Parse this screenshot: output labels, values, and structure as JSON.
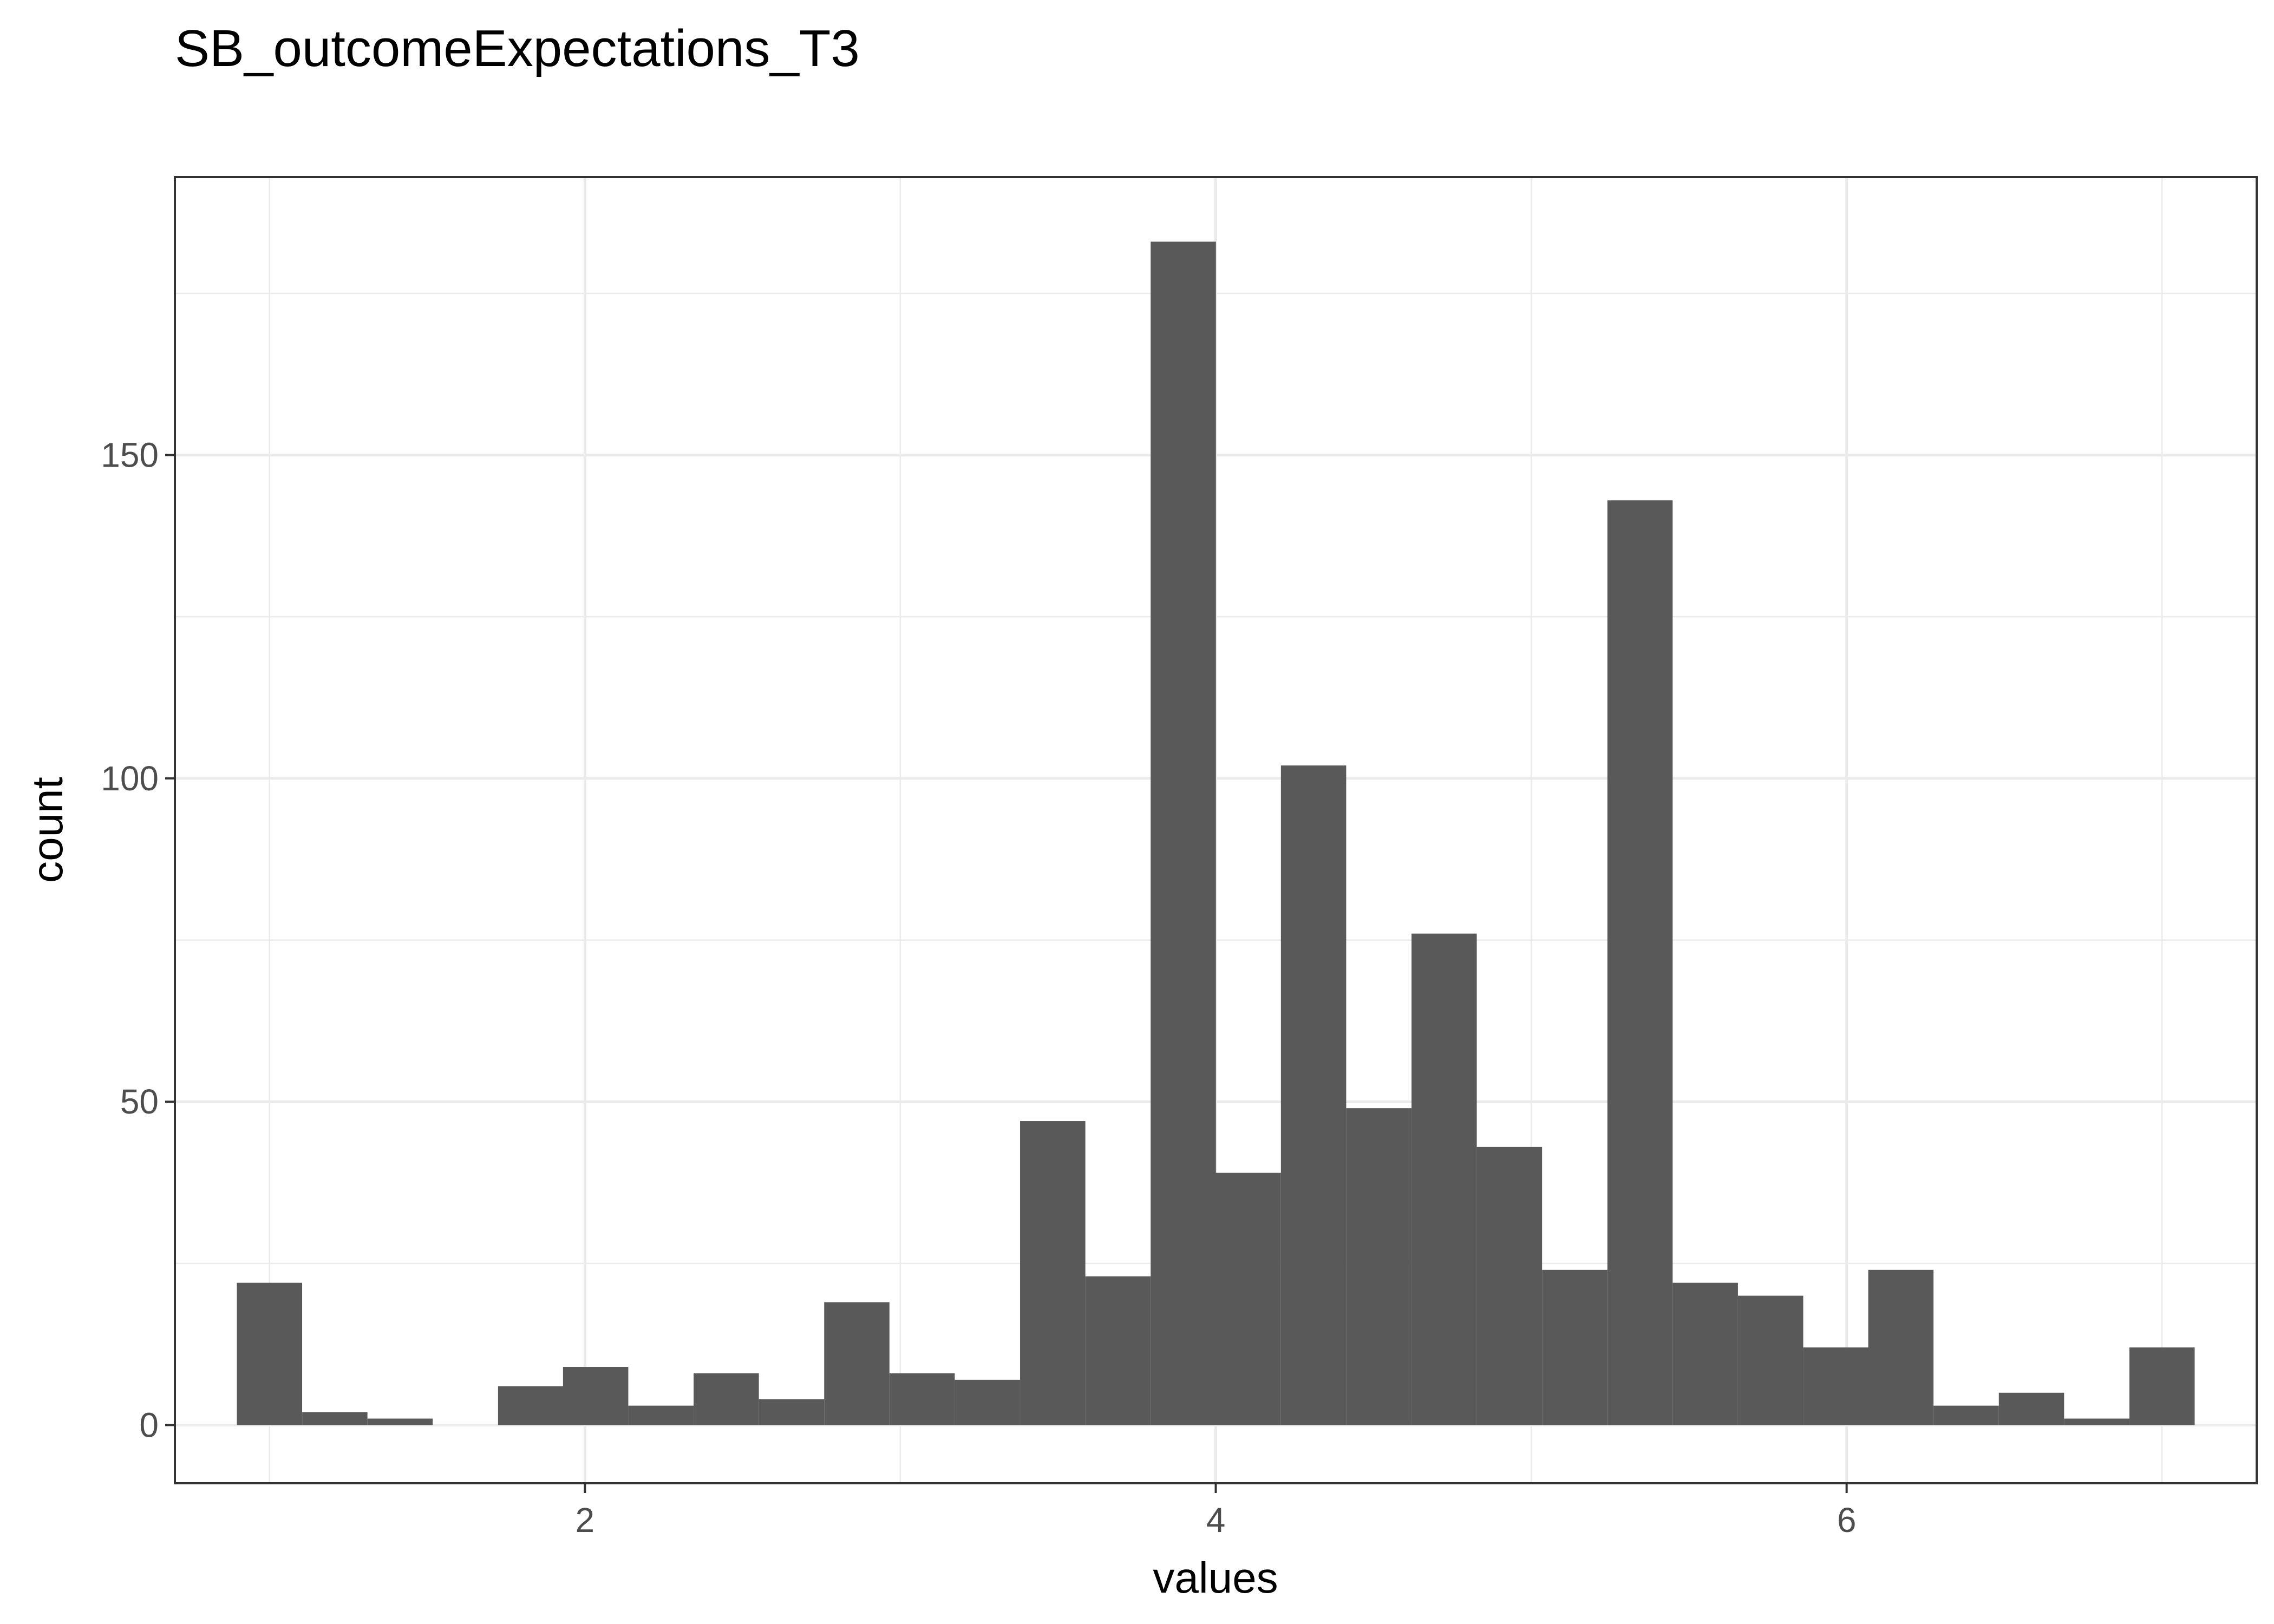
{
  "chart_data": {
    "type": "bar",
    "title": "SB_outcomeExpectations_T3",
    "xlabel": "values",
    "ylabel": "count",
    "xlim": [
      0.7,
      7.3
    ],
    "ylim": [
      -9,
      193
    ],
    "x_ticks": [
      2,
      4,
      6
    ],
    "y_ticks": [
      0,
      50,
      100,
      150
    ],
    "x_tick_labels": [
      "2",
      "4",
      "6"
    ],
    "y_tick_labels": [
      "0",
      "50",
      "100",
      "150"
    ],
    "grid": true,
    "bar_color": "#595959",
    "bin_width": 0.2069,
    "bin_centers": [
      1.0,
      1.207,
      1.414,
      1.621,
      1.828,
      2.034,
      2.241,
      2.448,
      2.655,
      2.862,
      3.069,
      3.276,
      3.483,
      3.69,
      3.897,
      4.103,
      4.31,
      4.517,
      4.724,
      4.931,
      5.138,
      5.345,
      5.552,
      5.759,
      5.966,
      6.172,
      6.379,
      6.586,
      6.793,
      7.0
    ],
    "values": [
      22,
      2,
      1,
      0,
      6,
      9,
      3,
      8,
      4,
      19,
      8,
      7,
      47,
      23,
      183,
      39,
      102,
      49,
      76,
      43,
      24,
      143,
      22,
      20,
      12,
      24,
      3,
      5,
      1,
      12
    ]
  }
}
